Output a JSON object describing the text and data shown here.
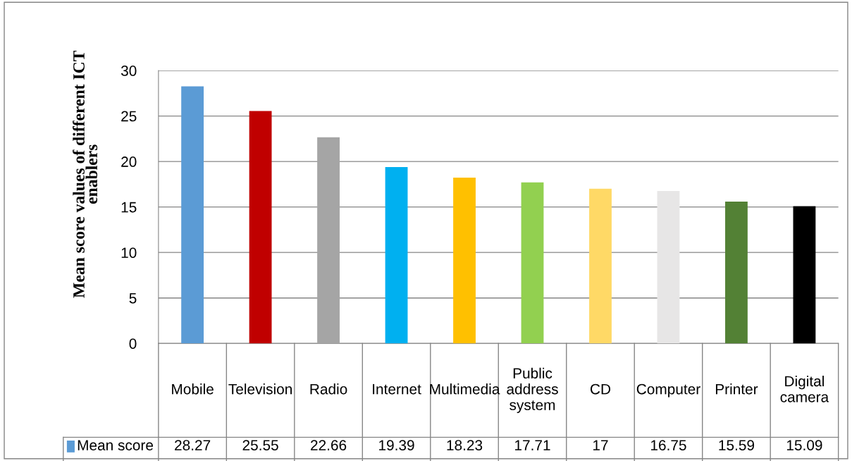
{
  "chart_data": {
    "type": "bar",
    "ylabel": "Mean score values of different ICT enablers",
    "categories": [
      "Mobile",
      "Television",
      "Radio",
      "Internet",
      "Multimedia",
      "Public address system",
      "CD",
      "Computer",
      "Printer",
      "Digital camera"
    ],
    "series": [
      {
        "name": "Mean score",
        "color": "#5b9bd5",
        "colors": [
          "#5b9bd5",
          "#c00000",
          "#a5a5a5",
          "#00b0f0",
          "#ffc000",
          "#92d050",
          "#ffd966",
          "#e7e6e6",
          "#538135",
          "#000000"
        ],
        "values": [
          28.27,
          25.55,
          22.66,
          19.39,
          18.23,
          17.71,
          17,
          16.75,
          15.59,
          15.09
        ]
      }
    ],
    "ylim": [
      0,
      30
    ],
    "yticks": [
      0,
      5,
      10,
      15,
      20,
      25,
      30
    ],
    "grid": "y",
    "data_labels": true,
    "legend": "bottom left"
  }
}
